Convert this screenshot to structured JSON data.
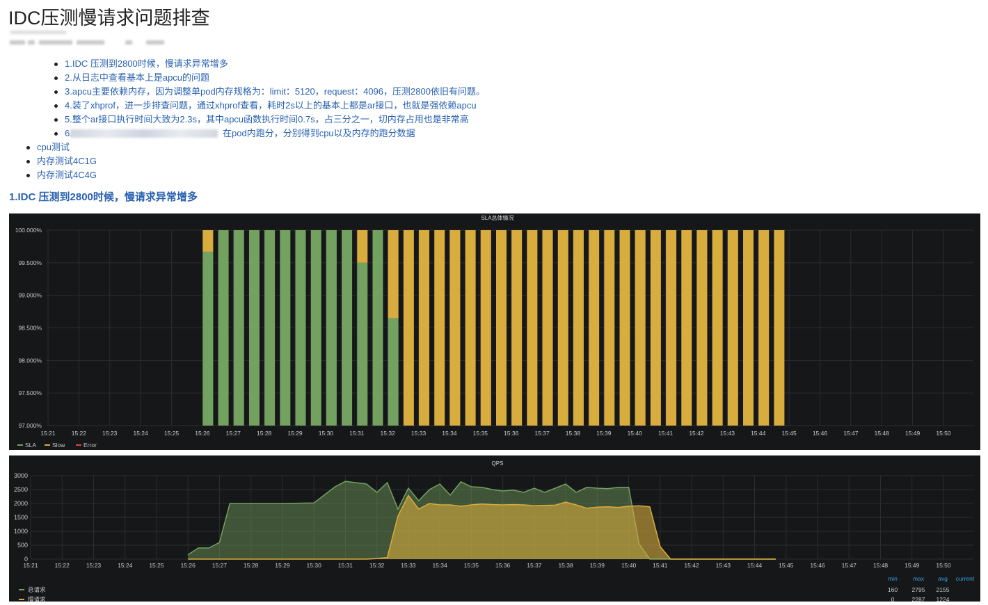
{
  "page": {
    "title": "IDC压测慢请求问题排查"
  },
  "sub_items": [
    "1.IDC 压测到2800时候，慢请求异常增多",
    "2.从日志中查看基本上是apcu的问题",
    "3.apcu主要依赖内存，因为调整单pod内存规格为：limit：5120，request：4096，压测2800依旧有问题。",
    "4.装了xhprof，进一步排查问题，通过xhprof查看，耗时2s以上的基本上都是ar接口，也就是强依赖apcu",
    "5.整个ar接口执行时间大致为2.3s，其中apcu函数执行时间0.7s，占三分之一，切内存占用也是非常高",
    "6.",
    "在pod内跑分，分别得到cpu以及内存的跑分数据"
  ],
  "main_items": [
    "cpu测试",
    "内存测试4C1G",
    "内存测试4C4G"
  ],
  "section_heading": "1.IDC 压测到2800时候，慢请求异常增多",
  "colors": {
    "sla": "#73a160",
    "slow": "#d9ac3e",
    "error": "#e0443f",
    "panel_bg": "#161719",
    "grid": "#2c2d30",
    "axis_text": "#c8c9cc"
  },
  "chart_data": [
    {
      "type": "bar",
      "title": "SLA总体情况",
      "x_ticks": [
        "15:21",
        "15:22",
        "15:23",
        "15:24",
        "15:25",
        "15:26",
        "15:27",
        "15:28",
        "15:29",
        "15:30",
        "15:31",
        "15:32",
        "15:33",
        "15:34",
        "15:35",
        "15:36",
        "15:37",
        "15:38",
        "15:39",
        "15:40",
        "15:41",
        "15:42",
        "15:43",
        "15:44",
        "15:45",
        "15:46",
        "15:47",
        "15:48",
        "15:49",
        "15:50"
      ],
      "y_ticks": [
        "100.000%",
        "99.500%",
        "99.000%",
        "98.500%",
        "98.000%",
        "97.500%",
        "97.000%"
      ],
      "ylim": [
        97,
        100
      ],
      "legend": [
        {
          "name": "SLA",
          "color": "#73a160"
        },
        {
          "name": "Slow",
          "color": "#d9ac3e"
        },
        {
          "name": "Error",
          "color": "#e0443f"
        }
      ],
      "bars": {
        "start_minute": 5,
        "step_minutes": 0.5,
        "sla": [
          99.67,
          100,
          100,
          100,
          100,
          100,
          100,
          100,
          100,
          100,
          99.5,
          100,
          98.65,
          97,
          97,
          97,
          97,
          97,
          97,
          97,
          97,
          97,
          97,
          97,
          97,
          97,
          97,
          97,
          97,
          97,
          97,
          97,
          97,
          97,
          97,
          97,
          97,
          97
        ]
      }
    },
    {
      "type": "area",
      "title": "QPS",
      "x_ticks": [
        "15:21",
        "15:22",
        "15:23",
        "15:24",
        "15:25",
        "15:26",
        "15:27",
        "15:28",
        "15:29",
        "15:30",
        "15:31",
        "15:32",
        "15:33",
        "15:34",
        "15:35",
        "15:36",
        "15:37",
        "15:38",
        "15:39",
        "15:40",
        "15:41",
        "15:42",
        "15:43",
        "15:44",
        "15:45",
        "15:46",
        "15:47",
        "15:48",
        "15:49",
        "15:50"
      ],
      "y_ticks": [
        "3000",
        "2500",
        "2000",
        "1500",
        "1000",
        "500",
        "0"
      ],
      "ylim": [
        0,
        3000
      ],
      "series": [
        {
          "name": "总请求",
          "color": "#73a160",
          "x": [
            5,
            5.33,
            5.67,
            6,
            6.33,
            7,
            8,
            9,
            9.67,
            10,
            10.67,
            11,
            11.33,
            11.67,
            12,
            12.33,
            12.67,
            13,
            13.33,
            13.67,
            14,
            14.33,
            14.67,
            15,
            15.33,
            15.67,
            16,
            16.33,
            16.67,
            17,
            17.33,
            17.67,
            18,
            18.33,
            18.67,
            19,
            19.33,
            19.67,
            20,
            20.33,
            20.67,
            21,
            21.33,
            21.67,
            22,
            22.33,
            22.67,
            23,
            23.33,
            23.67,
            24
          ],
          "values": [
            160,
            400,
            400,
            600,
            2000,
            2000,
            2000,
            2020,
            2600,
            2795,
            2700,
            2400,
            2750,
            1800,
            2550,
            2100,
            2500,
            2700,
            2300,
            2780,
            2600,
            2580,
            2500,
            2450,
            2480,
            2400,
            2550,
            2400,
            2550,
            2700,
            2400,
            2580,
            2550,
            2530,
            2580,
            2580,
            550,
            0,
            0,
            0,
            0,
            0,
            0,
            0,
            0,
            0,
            0,
            0,
            0,
            0,
            0
          ]
        },
        {
          "name": "慢请求",
          "color": "#d9ac3e",
          "x": [
            5,
            6,
            7,
            8,
            9,
            10,
            10.67,
            11,
            11.33,
            11.67,
            12,
            12.33,
            12.67,
            13,
            13.33,
            13.67,
            14,
            14.33,
            14.67,
            15,
            15.33,
            15.67,
            16,
            16.33,
            16.67,
            17,
            17.33,
            17.67,
            18,
            18.33,
            18.67,
            19,
            19.33,
            19.67,
            20,
            20.33,
            20.67,
            21,
            21.33,
            21.67,
            22,
            22.33,
            22.67,
            23,
            23.33,
            23.67,
            24
          ],
          "values": [
            0,
            0,
            0,
            0,
            0,
            0,
            0,
            20,
            60,
            1550,
            2287,
            1800,
            2000,
            1950,
            1950,
            1900,
            1950,
            1980,
            1960,
            1950,
            1960,
            1950,
            1920,
            1930,
            1940,
            2050,
            1950,
            1830,
            1870,
            1880,
            1860,
            1900,
            1920,
            1880,
            450,
            0,
            0,
            0,
            0,
            0,
            0,
            0,
            0,
            0,
            0,
            0,
            0
          ]
        }
      ],
      "legend_table": {
        "headers": [
          "min",
          "max",
          "avg",
          "current"
        ],
        "rows": [
          {
            "name": "总请求",
            "min": "160",
            "max": "2795",
            "avg": "2155",
            "current": ""
          },
          {
            "name": "慢请求",
            "min": "0",
            "max": "2287",
            "avg": "1224",
            "current": ""
          }
        ]
      }
    }
  ]
}
